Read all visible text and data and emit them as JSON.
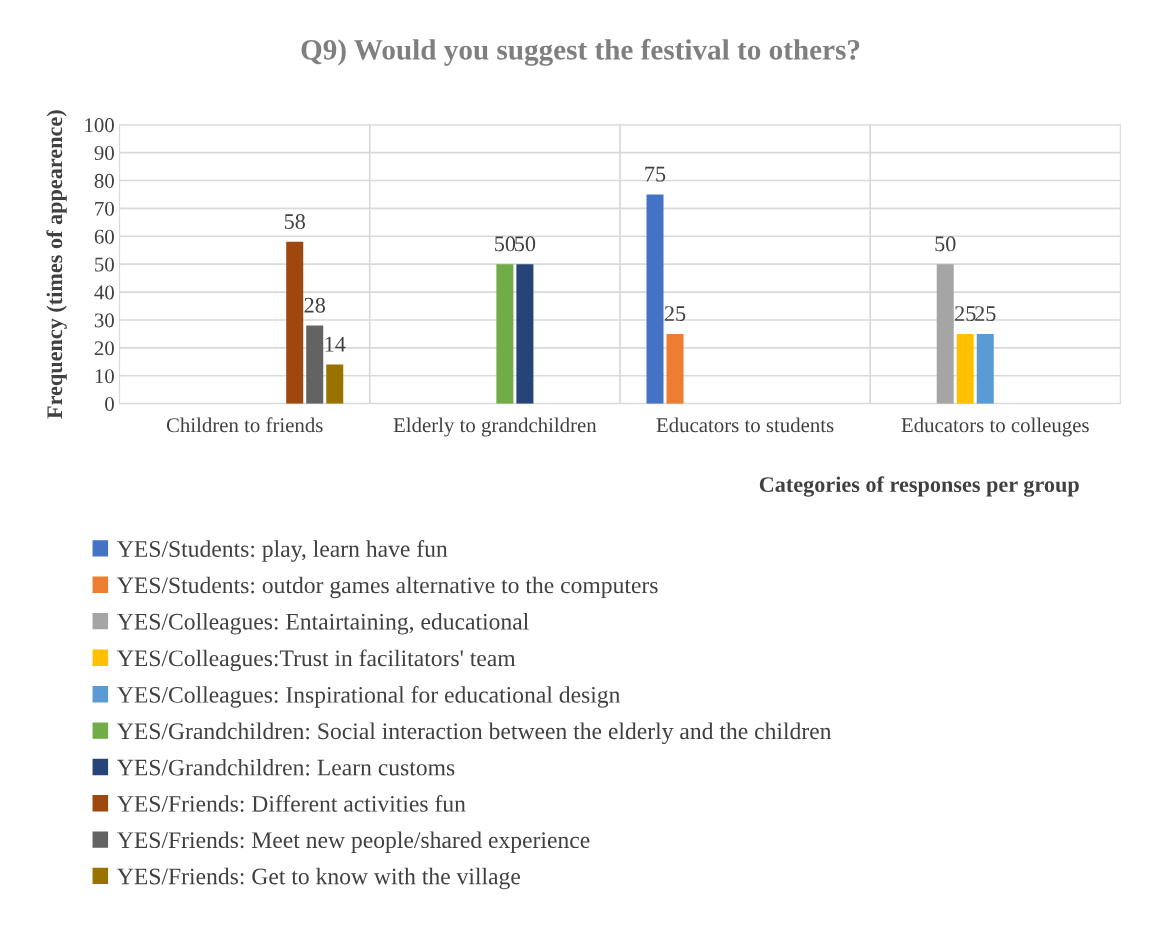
{
  "chart_data": {
    "type": "bar",
    "title": "Q9) Would you suggest the festival to others?",
    "xlabel": "Categories of responses per group",
    "ylabel": "Frequency (times of appearence)",
    "categories": [
      "Children to friends",
      "Elderly to grandchildren",
      "Educators to students",
      "Educators to colleuges"
    ],
    "ylim": [
      0,
      100
    ],
    "yticks": [
      0,
      10,
      20,
      30,
      40,
      50,
      60,
      70,
      80,
      90,
      100
    ],
    "grid": true,
    "legend": "bottom",
    "data_labels": true,
    "series": [
      {
        "name": "YES/Students: play, learn have fun",
        "color": "#4472c4",
        "values": [
          null,
          null,
          75,
          null
        ]
      },
      {
        "name": "YES/Students: outdor games alternative to the computers",
        "color": "#ed7d31",
        "values": [
          null,
          null,
          25,
          null
        ]
      },
      {
        "name": "YES/Colleagues: Entairtaining, educational",
        "color": "#a5a5a5",
        "values": [
          null,
          null,
          null,
          50
        ]
      },
      {
        "name": "YES/Colleagues:Trust in facilitators' team",
        "color": "#ffc000",
        "values": [
          null,
          null,
          null,
          25
        ]
      },
      {
        "name": "YES/Colleagues: Inspirational for educational design",
        "color": "#5b9bd5",
        "values": [
          null,
          null,
          null,
          25
        ]
      },
      {
        "name": "YES/Grandchildren: Social interaction between the elderly and the children",
        "color": "#70ad47",
        "values": [
          null,
          50,
          null,
          null
        ]
      },
      {
        "name": "YES/Grandchildren: Learn customs",
        "color": "#264478",
        "values": [
          null,
          50,
          null,
          null
        ]
      },
      {
        "name": "YES/Friends: Different activities fun",
        "color": "#9e480e",
        "values": [
          58,
          null,
          null,
          null
        ]
      },
      {
        "name": "YES/Friends: Meet new people/shared experience",
        "color": "#636363",
        "values": [
          28,
          null,
          null,
          null
        ]
      },
      {
        "name": "YES/Friends: Get to know with the village",
        "color": "#997300",
        "values": [
          14,
          null,
          null,
          null
        ]
      }
    ]
  }
}
